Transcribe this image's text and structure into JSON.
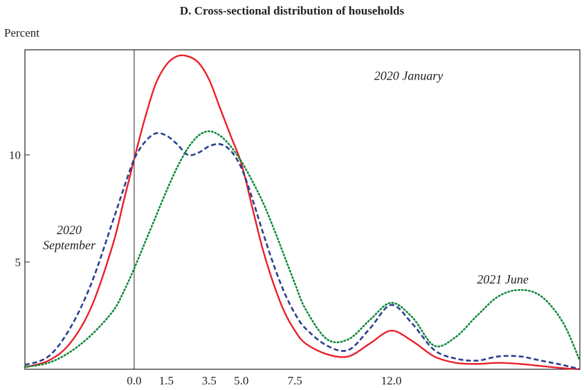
{
  "chart_data": {
    "type": "line",
    "title": "D. Cross-sectional distribution of households",
    "ylabel": "Percent",
    "xlabel": "",
    "xlim": [
      -5.1,
      20.8
    ],
    "ylim": [
      0,
      14.9
    ],
    "xticks": [
      {
        "value": 0.0,
        "label": "0.0"
      },
      {
        "value": 1.5,
        "label": "1.5"
      },
      {
        "value": 3.5,
        "label": "3.5"
      },
      {
        "value": 5.0,
        "label": "5.0"
      },
      {
        "value": 7.5,
        "label": "7.5"
      },
      {
        "value": 12.0,
        "label": "12.0"
      }
    ],
    "yticks": [
      {
        "value": 5,
        "label": "5"
      },
      {
        "value": 10,
        "label": "10"
      }
    ],
    "vline_x": 0,
    "grid": false,
    "legend": "none",
    "series": [
      {
        "name": "2020 January",
        "color": "#e8202a",
        "style": "solid",
        "x": [
          -5.1,
          -4,
          -3,
          -2,
          -1,
          -0.5,
          0,
          0.5,
          1,
          1.5,
          2,
          2.5,
          3,
          3.5,
          4,
          4.5,
          5,
          5.5,
          6,
          6.5,
          7,
          7.5,
          8,
          9,
          10,
          11,
          12,
          13,
          14,
          15,
          16,
          17,
          18,
          19,
          20,
          20.8
        ],
        "y": [
          0.1,
          0.4,
          1.2,
          2.9,
          5.8,
          7.8,
          9.8,
          11.7,
          13.3,
          14.2,
          14.6,
          14.6,
          14.3,
          13.5,
          12.2,
          10.9,
          9.6,
          7.6,
          5.6,
          4.0,
          2.7,
          1.8,
          1.2,
          0.7,
          0.6,
          1.2,
          1.8,
          1.3,
          0.6,
          0.3,
          0.25,
          0.3,
          0.25,
          0.15,
          0.05,
          0.0
        ]
      },
      {
        "name": "2020 September",
        "color": "#2a3e8f",
        "style": "dashed",
        "x": [
          -5.1,
          -4,
          -3,
          -2,
          -1,
          -0.5,
          0,
          0.5,
          1,
          1.5,
          2,
          2.5,
          3,
          3.5,
          4,
          4.5,
          5,
          5.5,
          6,
          6.5,
          7,
          7.5,
          8,
          9,
          10,
          11,
          12,
          13,
          14,
          15,
          16,
          17,
          18,
          19,
          20,
          20.8
        ],
        "y": [
          0.2,
          0.6,
          1.9,
          4.0,
          6.9,
          8.4,
          9.8,
          10.6,
          11.0,
          10.9,
          10.5,
          10.0,
          10.1,
          10.4,
          10.5,
          10.2,
          9.4,
          8.0,
          6.4,
          4.9,
          3.6,
          2.6,
          1.9,
          1.1,
          0.9,
          1.9,
          3.0,
          2.1,
          0.9,
          0.5,
          0.4,
          0.6,
          0.6,
          0.4,
          0.2,
          0.0
        ]
      },
      {
        "name": "2021 June",
        "color": "#0f8a3a",
        "style": "dotted",
        "x": [
          -5.1,
          -4,
          -3,
          -2,
          -1,
          -0.5,
          0,
          0.5,
          1,
          1.5,
          2,
          2.5,
          3,
          3.5,
          4,
          4.5,
          5,
          5.5,
          6,
          6.5,
          7,
          7.5,
          8,
          9,
          10,
          11,
          12,
          13,
          14,
          15,
          16,
          17,
          18,
          19,
          20,
          20.8
        ],
        "y": [
          0.1,
          0.3,
          0.8,
          1.6,
          2.7,
          3.6,
          4.7,
          5.9,
          7.1,
          8.3,
          9.4,
          10.3,
          10.9,
          11.1,
          10.9,
          10.4,
          9.7,
          8.8,
          7.8,
          6.6,
          5.3,
          4.0,
          2.8,
          1.4,
          1.4,
          2.3,
          3.1,
          2.4,
          1.1,
          1.5,
          2.5,
          3.4,
          3.7,
          3.4,
          2.2,
          0.4
        ]
      }
    ],
    "annotations": [
      {
        "id": "jan",
        "lines": [
          "2020 January"
        ],
        "x": 11.2,
        "y": 13.5
      },
      {
        "id": "sep",
        "lines": [
          "2020",
          "September"
        ],
        "x": -4.6,
        "y": 6.3
      },
      {
        "id": "jun",
        "lines": [
          "2021 June"
        ],
        "x": 16.0,
        "y": 4.0
      }
    ]
  }
}
